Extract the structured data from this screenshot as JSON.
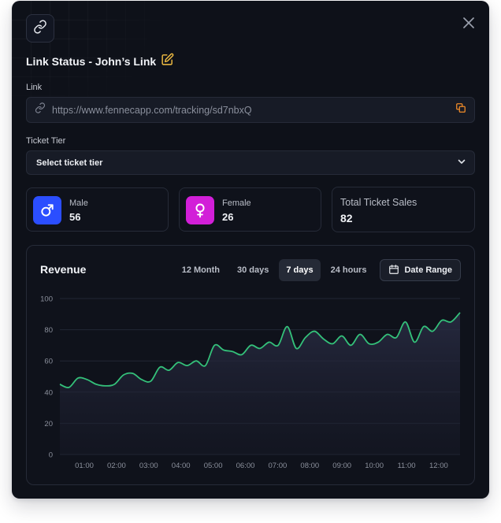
{
  "modal": {
    "title": "Link Status - John’s Link",
    "close_icon": "close-icon",
    "link_icon": "link-icon",
    "edit_icon": "edit-icon"
  },
  "link": {
    "label": "Link",
    "value": "https://www.fennecapp.com/tracking/sd7nbxQ",
    "copy_icon": "copy-icon"
  },
  "ticket_tier": {
    "label": "Ticket Tier",
    "placeholder": "Select ticket tier"
  },
  "stats": {
    "male": {
      "label": "Male",
      "value": "56",
      "icon": "male-icon",
      "color": "#2b4eff"
    },
    "female": {
      "label": "Female",
      "value": "26",
      "icon": "female-icon",
      "color": "#d21fd8"
    },
    "total": {
      "label": "Total Ticket Sales",
      "value": "82"
    }
  },
  "revenue": {
    "title": "Revenue",
    "tabs": [
      "12 Month",
      "30 days",
      "7 days",
      "24 hours"
    ],
    "active_tab": "7 days",
    "date_range_label": "Date Range"
  },
  "colors": {
    "accent_green": "#34c17a",
    "edit_yellow": "#f5c043",
    "copy_orange": "#f08b28",
    "background": "#0e1119"
  },
  "chart_data": {
    "type": "line",
    "title": "",
    "xlabel": "",
    "ylabel": "",
    "ylim": [
      0,
      100
    ],
    "yticks": [
      0,
      20,
      40,
      60,
      80,
      100
    ],
    "xticks": [
      "01:00",
      "02:00",
      "03:00",
      "04:00",
      "05:00",
      "06:00",
      "07:00",
      "08:00",
      "09:00",
      "10:00",
      "11:00",
      "12:00"
    ],
    "grid": true,
    "series": [
      {
        "values": [
          45,
          43,
          49,
          48,
          45,
          44,
          45,
          51,
          52,
          48,
          47,
          56,
          54,
          59,
          57,
          60,
          57,
          70,
          67,
          66,
          64,
          70,
          68,
          72,
          70,
          82,
          68,
          75,
          79,
          74,
          71,
          76,
          70,
          77,
          71,
          72,
          77,
          75,
          85,
          72,
          82,
          79,
          86,
          85,
          91
        ]
      }
    ]
  }
}
